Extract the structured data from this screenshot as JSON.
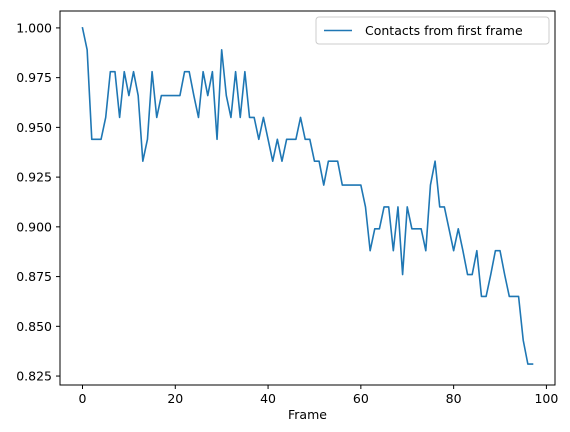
{
  "chart_data": {
    "type": "line",
    "title": "",
    "xlabel": "Frame",
    "ylabel": "",
    "xlim": [
      -4.85,
      101.85
    ],
    "ylim": [
      0.8205,
      1.0085
    ],
    "xticks": [
      0,
      20,
      40,
      60,
      80,
      100
    ],
    "xtick_labels": [
      "0",
      "20",
      "40",
      "60",
      "80",
      "100"
    ],
    "yticks": [
      0.825,
      0.85,
      0.875,
      0.9,
      0.925,
      0.95,
      0.975,
      1.0
    ],
    "ytick_labels": [
      "0.825",
      "0.850",
      "0.875",
      "0.900",
      "0.925",
      "0.950",
      "0.975",
      "1.000"
    ],
    "grid": false,
    "legend_position": "top-right",
    "series": [
      {
        "name": "Contacts from first frame",
        "color": "#1f77b4",
        "x": [
          0,
          1,
          2,
          3,
          4,
          5,
          6,
          7,
          8,
          9,
          10,
          11,
          12,
          13,
          14,
          15,
          16,
          17,
          18,
          19,
          20,
          21,
          22,
          23,
          24,
          25,
          26,
          27,
          28,
          29,
          30,
          31,
          32,
          33,
          34,
          35,
          36,
          37,
          38,
          39,
          40,
          41,
          42,
          43,
          44,
          45,
          46,
          47,
          48,
          49,
          50,
          51,
          52,
          53,
          54,
          55,
          56,
          57,
          58,
          59,
          60,
          61,
          62,
          63,
          64,
          65,
          66,
          67,
          68,
          69,
          70,
          71,
          72,
          73,
          74,
          75,
          76,
          77,
          78,
          79,
          80,
          81,
          82,
          83,
          84,
          85,
          86,
          87,
          88,
          89,
          90,
          91,
          92,
          93,
          94,
          95,
          96,
          97
        ],
        "values": [
          1.0,
          0.989,
          0.944,
          0.944,
          0.944,
          0.955,
          0.978,
          0.978,
          0.955,
          0.978,
          0.966,
          0.978,
          0.966,
          0.933,
          0.944,
          0.978,
          0.955,
          0.966,
          0.966,
          0.966,
          0.966,
          0.966,
          0.978,
          0.978,
          0.966,
          0.955,
          0.978,
          0.966,
          0.978,
          0.944,
          0.989,
          0.966,
          0.955,
          0.978,
          0.955,
          0.978,
          0.955,
          0.955,
          0.944,
          0.955,
          0.944,
          0.933,
          0.944,
          0.933,
          0.944,
          0.944,
          0.944,
          0.955,
          0.944,
          0.944,
          0.933,
          0.933,
          0.921,
          0.933,
          0.933,
          0.933,
          0.921,
          0.921,
          0.921,
          0.921,
          0.921,
          0.91,
          0.888,
          0.899,
          0.899,
          0.91,
          0.91,
          0.888,
          0.91,
          0.876,
          0.91,
          0.899,
          0.899,
          0.899,
          0.888,
          0.921,
          0.933,
          0.91,
          0.91,
          0.899,
          0.888,
          0.899,
          0.888,
          0.876,
          0.876,
          0.888,
          0.865,
          0.865,
          0.876,
          0.888,
          0.888,
          0.876,
          0.865,
          0.865,
          0.865,
          0.843,
          0.831,
          0.831
        ]
      }
    ]
  }
}
